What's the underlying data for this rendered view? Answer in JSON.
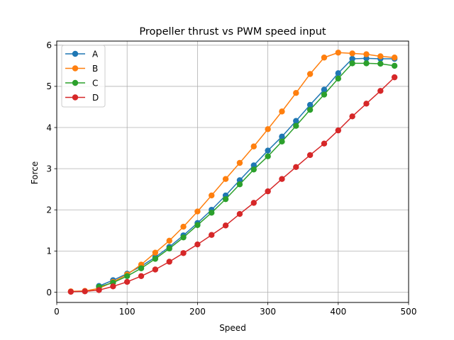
{
  "chart_data": {
    "type": "line",
    "title": "Propeller thrust vs PWM speed input",
    "xlabel": "Speed",
    "ylabel": "Force",
    "xlim": [
      0,
      500
    ],
    "ylim": [
      -0.25,
      6.1
    ],
    "xticks": [
      0,
      100,
      200,
      300,
      400,
      500
    ],
    "yticks": [
      0,
      1,
      2,
      3,
      4,
      5,
      6
    ],
    "grid": true,
    "legend_position": "top-left",
    "series": [
      {
        "name": "A",
        "color": "#1f77b4",
        "x": [
          60,
          80,
          100,
          120,
          140,
          160,
          180,
          200,
          220,
          240,
          260,
          280,
          300,
          320,
          340,
          360,
          380,
          400,
          420,
          440,
          460,
          480
        ],
        "y": [
          0.15,
          0.29,
          0.45,
          0.63,
          0.85,
          1.1,
          1.38,
          1.68,
          2.0,
          2.35,
          2.72,
          3.08,
          3.44,
          3.78,
          4.16,
          4.55,
          4.92,
          5.32,
          5.67,
          5.68,
          5.67,
          5.67
        ]
      },
      {
        "name": "B",
        "color": "#ff7f0e",
        "x": [
          20,
          40,
          60,
          80,
          100,
          120,
          140,
          160,
          180,
          200,
          220,
          240,
          260,
          280,
          300,
          320,
          340,
          360,
          380,
          400,
          420,
          440,
          460,
          480
        ],
        "y": [
          0.02,
          0.03,
          0.09,
          0.25,
          0.43,
          0.67,
          0.96,
          1.25,
          1.59,
          1.96,
          2.35,
          2.75,
          3.14,
          3.54,
          3.96,
          4.39,
          4.84,
          5.3,
          5.7,
          5.82,
          5.8,
          5.78,
          5.73,
          5.7
        ]
      },
      {
        "name": "C",
        "color": "#2ca02c",
        "x": [
          60,
          80,
          100,
          120,
          140,
          160,
          180,
          200,
          220,
          240,
          260,
          280,
          300,
          320,
          340,
          360,
          380,
          400,
          420,
          440,
          460,
          480
        ],
        "y": [
          0.13,
          0.23,
          0.39,
          0.58,
          0.81,
          1.06,
          1.33,
          1.63,
          1.93,
          2.26,
          2.62,
          2.98,
          3.3,
          3.66,
          4.04,
          4.43,
          4.8,
          5.19,
          5.56,
          5.56,
          5.55,
          5.5
        ]
      },
      {
        "name": "D",
        "color": "#d62728",
        "x": [
          20,
          40,
          60,
          80,
          100,
          120,
          140,
          160,
          180,
          200,
          220,
          240,
          260,
          280,
          300,
          320,
          340,
          360,
          380,
          400,
          420,
          440,
          460,
          480
        ],
        "y": [
          0.01,
          0.02,
          0.05,
          0.14,
          0.25,
          0.39,
          0.55,
          0.74,
          0.95,
          1.16,
          1.39,
          1.62,
          1.9,
          2.17,
          2.45,
          2.75,
          3.04,
          3.33,
          3.61,
          3.93,
          4.27,
          4.58,
          4.89,
          5.22
        ]
      }
    ]
  }
}
